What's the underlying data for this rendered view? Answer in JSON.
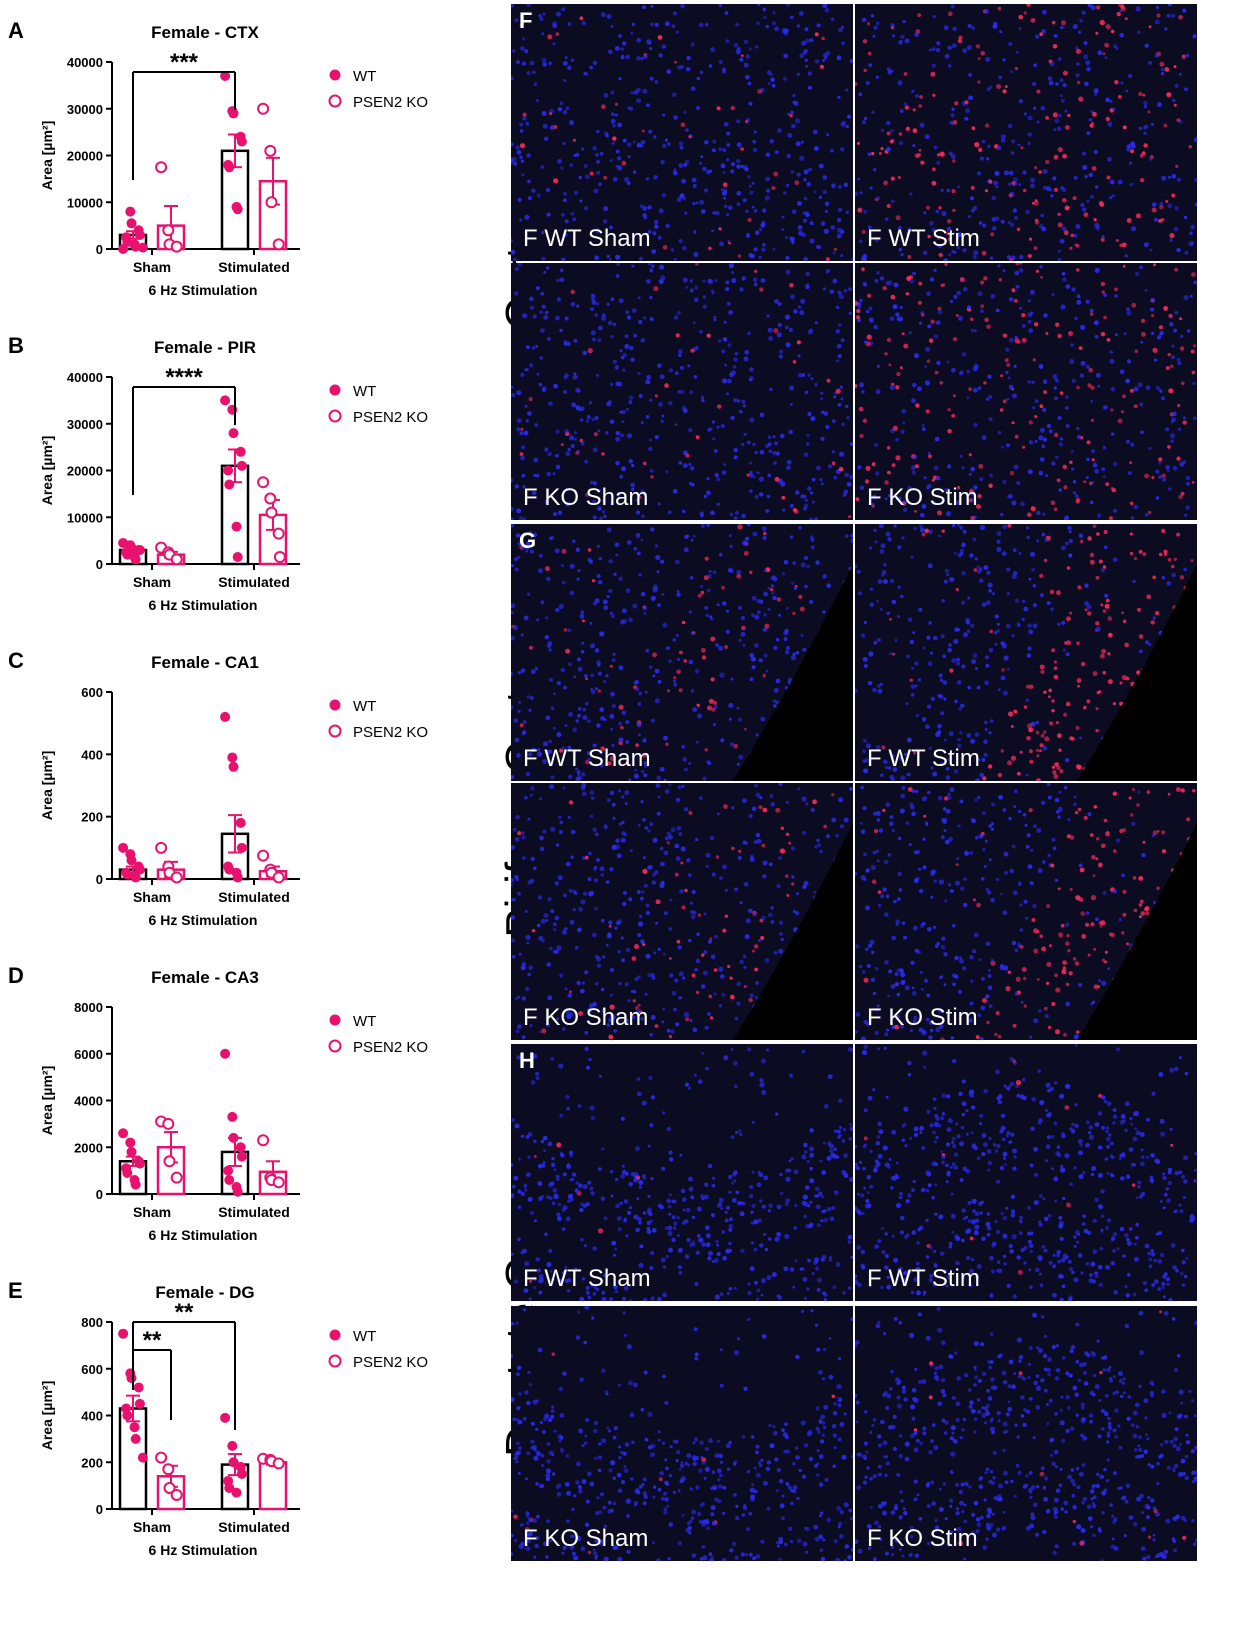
{
  "colors": {
    "accent": "#e8126e",
    "axis": "#000000",
    "nuclei": "#2a2cf0",
    "signal": "#ff2a5a"
  },
  "legend": {
    "wt": "WT",
    "ko": "PSEN2 KO"
  },
  "chart_data": [
    {
      "type": "bar",
      "letter": "A",
      "title": "Female - CTX",
      "ylabel": "Area [µm²]",
      "xlabel": "6 Hz Stimulation",
      "categories": [
        "Sham",
        "Stimulated"
      ],
      "ylim": [
        0,
        40000
      ],
      "yticks": [
        0,
        10000,
        20000,
        30000,
        40000
      ],
      "series": [
        {
          "name": "WT",
          "values": [
            3000,
            21000
          ],
          "sem": [
            800,
            3500
          ],
          "points": [
            [
              0,
              8000,
              5500,
              4000,
              3000,
              2500,
              1500,
              1000,
              500,
              300
            ],
            [
              37000,
              29500,
              29000,
              24000,
              23000,
              18000,
              17500,
              9000,
              8500
            ]
          ]
        },
        {
          "name": "PSEN2 KO",
          "values": [
            5000,
            14500
          ],
          "sem": [
            4200,
            5000
          ],
          "points": [
            [
              17500,
              4000,
              1000,
              500
            ],
            [
              30000,
              21000,
              10000,
              1000
            ]
          ]
        }
      ],
      "annotations": [
        {
          "text": "***",
          "from": [
            0,
            0
          ],
          "to": [
            1,
            0
          ]
        }
      ]
    },
    {
      "type": "bar",
      "letter": "B",
      "title": "Female - PIR",
      "ylabel": "Area [µm²]",
      "xlabel": "6 Hz Stimulation",
      "categories": [
        "Sham",
        "Stimulated"
      ],
      "ylim": [
        0,
        40000
      ],
      "yticks": [
        0,
        10000,
        20000,
        30000,
        40000
      ],
      "series": [
        {
          "name": "WT",
          "values": [
            3000,
            21000
          ],
          "sem": [
            500,
            3500
          ],
          "points": [
            [
              4500,
              4000,
              3500,
              3000,
              3000,
              2500,
              2000,
              1500,
              1000
            ],
            [
              35000,
              33000,
              28000,
              24000,
              21000,
              20000,
              17000,
              8000,
              1500
            ]
          ]
        },
        {
          "name": "PSEN2 KO",
          "values": [
            2000,
            10500
          ],
          "sem": [
            600,
            3200
          ],
          "points": [
            [
              3500,
              2500,
              2000,
              1000
            ],
            [
              17500,
              14000,
              11000,
              6500,
              1500
            ]
          ]
        }
      ],
      "annotations": [
        {
          "text": "****",
          "from": [
            0,
            0
          ],
          "to": [
            1,
            0
          ]
        }
      ]
    },
    {
      "type": "bar",
      "letter": "C",
      "title": "Female - CA1",
      "ylabel": "Area [µm²]",
      "xlabel": "6 Hz Stimulation",
      "categories": [
        "Sham",
        "Stimulated"
      ],
      "ylim": [
        0,
        600
      ],
      "yticks": [
        0,
        200,
        400,
        600
      ],
      "series": [
        {
          "name": "WT",
          "values": [
            30,
            145
          ],
          "sem": [
            10,
            60
          ],
          "points": [
            [
              100,
              80,
              60,
              40,
              30,
              20,
              15,
              10,
              5
            ],
            [
              520,
              390,
              360,
              180,
              100,
              40,
              30,
              20,
              5
            ]
          ]
        },
        {
          "name": "PSEN2 KO",
          "values": [
            30,
            25
          ],
          "sem": [
            25,
            15
          ],
          "points": [
            [
              100,
              40,
              20,
              5
            ],
            [
              75,
              30,
              20,
              5
            ]
          ]
        }
      ],
      "annotations": []
    },
    {
      "type": "bar",
      "letter": "D",
      "title": "Female - CA3",
      "ylabel": "Area [µm²]",
      "xlabel": "6 Hz Stimulation",
      "categories": [
        "Sham",
        "Stimulated"
      ],
      "ylim": [
        0,
        8000
      ],
      "yticks": [
        0,
        2000,
        4000,
        6000,
        8000
      ],
      "series": [
        {
          "name": "WT",
          "values": [
            1400,
            1800
          ],
          "sem": [
            200,
            600
          ],
          "points": [
            [
              2600,
              2200,
              1800,
              1400,
              1300,
              1100,
              900,
              600,
              400
            ],
            [
              6000,
              3300,
              2400,
              2000,
              1600,
              1000,
              600,
              300,
              100
            ]
          ]
        },
        {
          "name": "PSEN2 KO",
          "values": [
            2000,
            950
          ],
          "sem": [
            650,
            450
          ],
          "points": [
            [
              3100,
              3000,
              1400,
              700
            ],
            [
              2300,
              700,
              600,
              500
            ]
          ]
        }
      ],
      "annotations": []
    },
    {
      "type": "bar",
      "letter": "E",
      "title": "Female - DG",
      "ylabel": "Area [µm²]",
      "xlabel": "6 Hz Stimulation",
      "categories": [
        "Sham",
        "Stimulated"
      ],
      "ylim": [
        0,
        800
      ],
      "yticks": [
        0,
        200,
        400,
        600,
        800
      ],
      "series": [
        {
          "name": "WT",
          "values": [
            430,
            190
          ],
          "sem": [
            55,
            45
          ],
          "points": [
            [
              750,
              580,
              560,
              520,
              450,
              430,
              400,
              350,
              300,
              220
            ],
            [
              390,
              270,
              200,
              180,
              150,
              120,
              90,
              70
            ]
          ]
        },
        {
          "name": "PSEN2 KO",
          "values": [
            140,
            200
          ],
          "sem": [
            45,
            10
          ],
          "points": [
            [
              220,
              170,
              90,
              60
            ],
            [
              215,
              210,
              205,
              195
            ]
          ]
        }
      ],
      "annotations": [
        {
          "text": "**",
          "from": [
            0,
            0
          ],
          "to": [
            0,
            1
          ]
        },
        {
          "text": "**",
          "from": [
            0,
            0
          ],
          "to": [
            1,
            0
          ]
        }
      ]
    }
  ],
  "micrographs": {
    "regions": [
      "Cortex",
      "Piriform Cortex",
      "Dentate Gyrus"
    ],
    "panels": [
      {
        "letter": "F",
        "tiles": [
          "F WT Sham",
          "F WT Stim",
          "F KO Sham",
          "F KO Stim"
        ]
      },
      {
        "letter": "G",
        "tiles": [
          "F WT Sham",
          "F WT Stim",
          "F KO Sham",
          "F KO Stim"
        ]
      },
      {
        "letter": "H",
        "tiles": [
          "F WT Sham",
          "F WT Stim",
          "F KO Sham",
          "F KO Stim"
        ]
      }
    ]
  }
}
